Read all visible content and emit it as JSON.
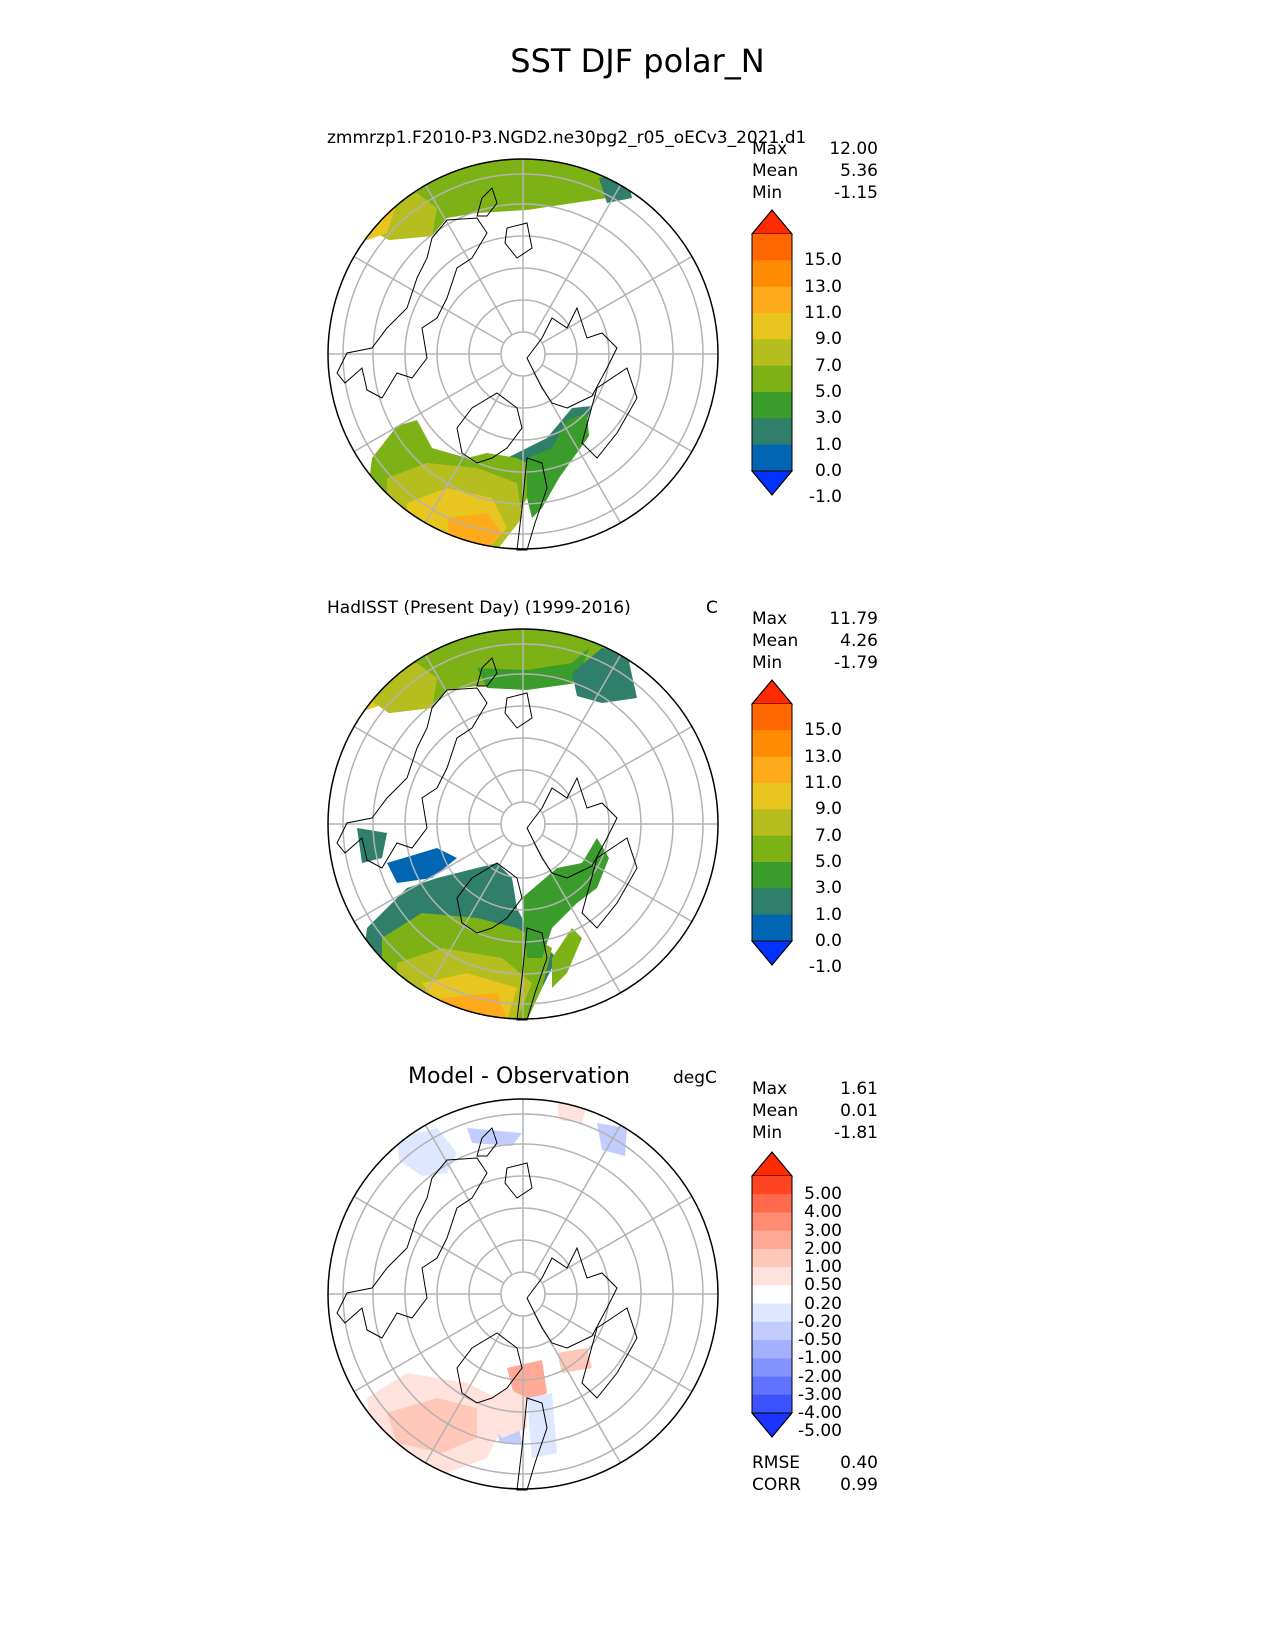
{
  "figure": {
    "title": "SST DJF polar_N"
  },
  "panels": [
    {
      "id": "test",
      "title": "zmmrzp1.F2010-P3.NGD2.ne30pg2_r05_oECv3_2021.d1",
      "unit": "",
      "stats": [
        {
          "label": "Max",
          "value": "12.00"
        },
        {
          "label": "Mean",
          "value": "5.36"
        },
        {
          "label": "Min",
          "value": "-1.15"
        }
      ]
    },
    {
      "id": "reference",
      "title": "HadISST (Present Day) (1999-2016)",
      "unit": "C",
      "stats": [
        {
          "label": "Max",
          "value": "11.79"
        },
        {
          "label": "Mean",
          "value": "4.26"
        },
        {
          "label": "Min",
          "value": "-1.79"
        }
      ]
    },
    {
      "id": "difference",
      "title": "Model - Observation",
      "unit": "degC",
      "stats": [
        {
          "label": "Max",
          "value": "1.61"
        },
        {
          "label": "Mean",
          "value": "0.01"
        },
        {
          "label": "Min",
          "value": "-1.81"
        }
      ],
      "metrics": [
        {
          "label": "RMSE",
          "value": "0.40"
        },
        {
          "label": "CORR",
          "value": "0.99"
        }
      ]
    }
  ],
  "colorbars": {
    "sst": {
      "labels": [
        "15.0",
        "13.0",
        "11.0",
        "9.0",
        "7.0",
        "5.0",
        "3.0",
        "1.0",
        "0.0",
        "-1.0"
      ],
      "colors": [
        "#ff2a00",
        "#ff6600",
        "#ff8c00",
        "#ffaa1a",
        "#e8c51f",
        "#b5be1e",
        "#7db216",
        "#3a9c2a",
        "#2f7f6b",
        "#0066b3",
        "#0033ff"
      ]
    },
    "diff": {
      "labels": [
        "5.00",
        "4.00",
        "3.00",
        "2.00",
        "1.00",
        "0.50",
        "0.20",
        "-0.20",
        "-0.50",
        "-1.00",
        "-2.00",
        "-3.00",
        "-4.00",
        "-5.00"
      ],
      "colors": [
        "#ff2a00",
        "#ff4422",
        "#ff6a4c",
        "#ff8b73",
        "#ffa996",
        "#ffc7ba",
        "#ffe2dc",
        "#ffffff",
        "#dfe6ff",
        "#c2ccff",
        "#a3b0ff",
        "#8393ff",
        "#6072ff",
        "#3d52ff",
        "#1a33ff"
      ]
    }
  }
}
